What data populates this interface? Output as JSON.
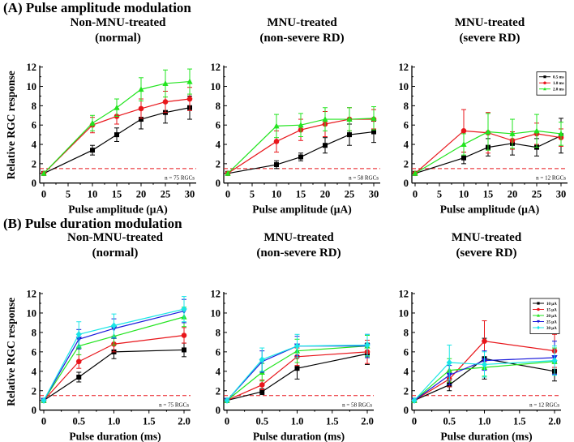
{
  "sections": [
    {
      "title": "(A) Pulse amplitude modulation"
    },
    {
      "title": "(B) Pulse duration modulation"
    }
  ],
  "colors": {
    "black": "#000000",
    "red": "#e8161b",
    "green": "#22e41f",
    "blue": "#1a1adb",
    "cyan": "#19e6e6",
    "threshold": "#e8161b"
  },
  "chart_data": [
    {
      "type": "line",
      "section": 0,
      "title": [
        "Non-MNU-treated",
        "(normal)"
      ],
      "xlabel": "Pulse amplitude (μA)",
      "ylabel": "Relative RGC response",
      "x": [
        0,
        10,
        15,
        20,
        25,
        30
      ],
      "xticks": [
        "0",
        "5",
        "10",
        "15",
        "20",
        "25",
        "30"
      ],
      "xtick_values": [
        0,
        5,
        10,
        15,
        20,
        25,
        30
      ],
      "yticks": [
        "0",
        "2",
        "4",
        "6",
        "8",
        "10",
        "12"
      ],
      "ylim": [
        0,
        12
      ],
      "threshold": 1.5,
      "annotation": "n = 75 RGCs",
      "series": [
        {
          "color": "#000000",
          "marker": "square",
          "values": [
            1,
            3.4,
            5.0,
            6.6,
            7.3,
            7.8
          ],
          "errors": [
            0,
            0.5,
            0.7,
            1.0,
            1.1,
            1.2
          ]
        },
        {
          "color": "#e8161b",
          "marker": "circle",
          "values": [
            1,
            6.0,
            6.9,
            7.7,
            8.4,
            8.7
          ],
          "errors": [
            0,
            0.8,
            0.8,
            1.0,
            1.1,
            1.2
          ]
        },
        {
          "color": "#22e41f",
          "marker": "triangle-up",
          "values": [
            1,
            6.2,
            7.8,
            9.7,
            10.3,
            10.5
          ],
          "errors": [
            0,
            0.8,
            0.9,
            1.2,
            1.4,
            1.3
          ]
        }
      ]
    },
    {
      "type": "line",
      "section": 0,
      "title": [
        "MNU-treated",
        "(non-severe RD)"
      ],
      "xlabel": "Pulse amplitude (μA)",
      "ylabel": "",
      "x": [
        0,
        10,
        15,
        20,
        25,
        30
      ],
      "xticks": [
        "0",
        "5",
        "10",
        "15",
        "20",
        "25",
        "30"
      ],
      "xtick_values": [
        0,
        5,
        10,
        15,
        20,
        25,
        30
      ],
      "yticks": [
        "0",
        "2",
        "4",
        "6",
        "8",
        "10",
        "12"
      ],
      "ylim": [
        0,
        12
      ],
      "threshold": 1.5,
      "annotation": "n = 58 RGCs",
      "series": [
        {
          "color": "#000000",
          "marker": "square",
          "values": [
            1,
            1.9,
            2.7,
            3.9,
            5.0,
            5.3
          ],
          "errors": [
            0,
            0.4,
            0.4,
            0.8,
            1.1,
            1.1
          ]
        },
        {
          "color": "#e8161b",
          "marker": "circle",
          "values": [
            1,
            4.3,
            5.5,
            6.1,
            6.6,
            6.6
          ],
          "errors": [
            0,
            1.1,
            1.1,
            1.3,
            1.2,
            1.0
          ]
        },
        {
          "color": "#22e41f",
          "marker": "triangle-up",
          "values": [
            1,
            5.9,
            6.0,
            6.6,
            6.6,
            6.7
          ],
          "errors": [
            0,
            1.2,
            1.2,
            1.2,
            1.2,
            1.2
          ]
        }
      ]
    },
    {
      "type": "line",
      "section": 0,
      "title": [
        "MNU-treated",
        "(severe RD)"
      ],
      "xlabel": "Pulse amplitude (μA)",
      "ylabel": "",
      "x": [
        0,
        10,
        15,
        20,
        25,
        30
      ],
      "xticks": [
        "0",
        "5",
        "10",
        "15",
        "20",
        "25",
        "30"
      ],
      "xtick_values": [
        0,
        5,
        10,
        15,
        20,
        25,
        30
      ],
      "yticks": [
        "0",
        "2",
        "4",
        "6",
        "8",
        "10",
        "12"
      ],
      "ylim": [
        0,
        12
      ],
      "threshold": 1.5,
      "annotation": "n = 12 RGCs",
      "legend": "top-right",
      "series": [
        {
          "name": "0.5 ms",
          "color": "#000000",
          "marker": "square",
          "values": [
            1,
            2.6,
            3.7,
            4.1,
            3.7,
            4.9
          ],
          "errors": [
            0,
            0.6,
            0.9,
            1.2,
            0.9,
            1.8
          ]
        },
        {
          "name": "1.0 ms",
          "color": "#e8161b",
          "marker": "circle",
          "values": [
            1,
            5.4,
            5.2,
            4.4,
            5.1,
            4.7
          ],
          "errors": [
            0,
            2.2,
            2.1,
            0.9,
            1.1,
            0.9
          ]
        },
        {
          "name": "2.0 ms",
          "color": "#22e41f",
          "marker": "triangle-up",
          "values": [
            1,
            4.0,
            5.3,
            5.1,
            5.4,
            5.1
          ],
          "errors": [
            0,
            1.1,
            1.9,
            1.5,
            1.7,
            1.2
          ]
        }
      ]
    },
    {
      "type": "line",
      "section": 1,
      "title": [
        "Non-MNU-treated",
        "(normal)"
      ],
      "xlabel": "Pulse duration (ms)",
      "ylabel": "Relative RGC response",
      "x": [
        0,
        0.5,
        1.0,
        2.0
      ],
      "xticks": [
        "0",
        "0.5",
        "1.0",
        "1.5",
        "2.0"
      ],
      "xtick_values": [
        0,
        0.5,
        1.0,
        1.5,
        2.0
      ],
      "yticks": [
        "0",
        "2",
        "4",
        "6",
        "8",
        "10",
        "12"
      ],
      "ylim": [
        0,
        12
      ],
      "threshold": 1.5,
      "annotation": "n = 75 RGCs",
      "series": [
        {
          "color": "#000000",
          "marker": "square",
          "values": [
            1,
            3.4,
            6.0,
            6.2
          ],
          "errors": [
            0,
            0.5,
            0.7,
            0.7
          ]
        },
        {
          "color": "#e8161b",
          "marker": "circle",
          "values": [
            1,
            5.0,
            6.8,
            7.7
          ],
          "errors": [
            0,
            0.7,
            0.8,
            0.8
          ]
        },
        {
          "color": "#22e41f",
          "marker": "triangle-up",
          "values": [
            1,
            6.6,
            7.6,
            9.6
          ],
          "errors": [
            0,
            0.9,
            0.9,
            1.0
          ]
        },
        {
          "color": "#1a1adb",
          "marker": "triangle-down",
          "values": [
            1,
            7.3,
            8.4,
            10.2
          ],
          "errors": [
            0,
            1.0,
            1.0,
            1.2
          ]
        },
        {
          "color": "#19e6e6",
          "marker": "diamond",
          "values": [
            1,
            7.8,
            8.7,
            10.4
          ],
          "errors": [
            0,
            1.3,
            1.2,
            1.3
          ]
        }
      ]
    },
    {
      "type": "line",
      "section": 1,
      "title": [
        "MNU-treated",
        "(non-severe RD)"
      ],
      "xlabel": "Pulse duration (ms)",
      "ylabel": "",
      "x": [
        0,
        0.5,
        1.0,
        2.0
      ],
      "xticks": [
        "0",
        "0.5",
        "1.0",
        "1.5",
        "2.0"
      ],
      "xtick_values": [
        0,
        0.5,
        1.0,
        1.5,
        2.0
      ],
      "yticks": [
        "0",
        "2",
        "4",
        "6",
        "8",
        "10",
        "12"
      ],
      "ylim": [
        0,
        12
      ],
      "threshold": 1.5,
      "annotation": "n = 58 RGCs",
      "series": [
        {
          "color": "#000000",
          "marker": "square",
          "values": [
            1,
            1.9,
            4.3,
            5.8
          ],
          "errors": [
            0,
            0.3,
            1.1,
            1.1
          ]
        },
        {
          "color": "#e8161b",
          "marker": "circle",
          "values": [
            1,
            2.6,
            5.5,
            6.0
          ],
          "errors": [
            0,
            0.5,
            0.9,
            1.2
          ]
        },
        {
          "color": "#22e41f",
          "marker": "triangle-up",
          "values": [
            1,
            3.9,
            6.1,
            6.6
          ],
          "errors": [
            0,
            0.9,
            1.2,
            1.1
          ]
        },
        {
          "color": "#1a1adb",
          "marker": "triangle-down",
          "values": [
            1,
            5.0,
            6.6,
            6.6
          ],
          "errors": [
            0,
            1.1,
            1.0,
            1.2
          ]
        },
        {
          "color": "#19e6e6",
          "marker": "diamond",
          "values": [
            1,
            5.2,
            6.6,
            6.7
          ],
          "errors": [
            0,
            1.2,
            1.2,
            1.1
          ]
        }
      ]
    },
    {
      "type": "line",
      "section": 1,
      "title": [
        "MNU-treated",
        "(severe RD)"
      ],
      "xlabel": "Pulse duration (ms)",
      "ylabel": "",
      "x": [
        0,
        0.5,
        1.0,
        2.0
      ],
      "xticks": [
        "0",
        "0.5",
        "1.0",
        "1.5",
        "2.0"
      ],
      "xtick_values": [
        0,
        0.5,
        1.0,
        1.5,
        2.0
      ],
      "yticks": [
        "0",
        "2",
        "4",
        "6",
        "8",
        "10",
        "12"
      ],
      "ylim": [
        0,
        12
      ],
      "threshold": 1.5,
      "annotation": "n = 12 RGCs",
      "legend": "top-right",
      "series": [
        {
          "name": "10 μA",
          "color": "#000000",
          "marker": "square",
          "values": [
            1,
            2.6,
            5.3,
            4.0
          ],
          "errors": [
            0,
            0.6,
            2.1,
            1.0
          ]
        },
        {
          "name": "15 μA",
          "color": "#e8161b",
          "marker": "circle",
          "values": [
            1,
            3.2,
            7.1,
            6.1
          ],
          "errors": [
            0,
            0.8,
            2.1,
            1.7
          ]
        },
        {
          "name": "20 μA",
          "color": "#22e41f",
          "marker": "triangle-up",
          "values": [
            1,
            4.1,
            4.4,
            5.0
          ],
          "errors": [
            0,
            1.2,
            0.9,
            1.4
          ]
        },
        {
          "name": "25 μA",
          "color": "#1a1adb",
          "marker": "triangle-down",
          "values": [
            1,
            3.6,
            5.1,
            5.4
          ],
          "errors": [
            0,
            1.0,
            1.0,
            1.7
          ]
        },
        {
          "name": "30 μA",
          "color": "#19e6e6",
          "marker": "diamond",
          "values": [
            1,
            4.9,
            4.7,
            5.1
          ],
          "errors": [
            0,
            1.8,
            1.3,
            1.5
          ]
        }
      ]
    }
  ]
}
